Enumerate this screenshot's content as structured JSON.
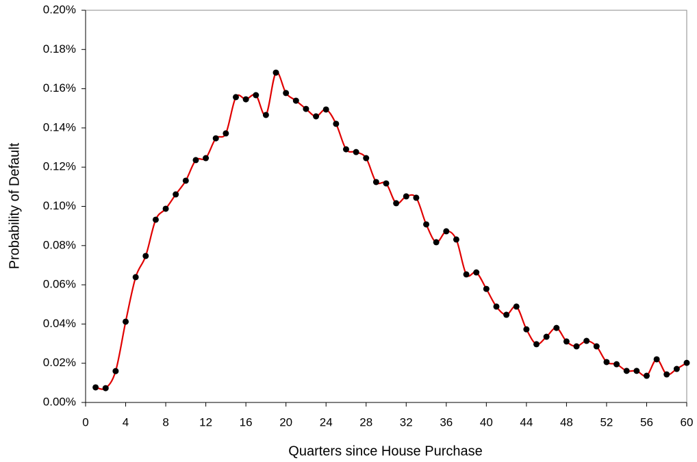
{
  "chart_data": {
    "type": "line",
    "x_label": "Quarters since House Purchase",
    "y_label": "Probability of Default",
    "x": [
      1,
      2,
      3,
      4,
      5,
      6,
      7,
      8,
      9,
      10,
      11,
      12,
      13,
      14,
      15,
      16,
      17,
      18,
      19,
      20,
      21,
      22,
      23,
      24,
      25,
      26,
      27,
      28,
      29,
      30,
      31,
      32,
      33,
      34,
      35,
      36,
      37,
      38,
      39,
      40,
      41,
      42,
      43,
      44,
      45,
      46,
      47,
      48,
      49,
      50,
      51,
      52,
      53,
      54,
      55,
      56,
      57,
      58,
      59,
      60
    ],
    "series": [
      {
        "color": "#e00000",
        "marker_color": "#000000",
        "values": [
          0.0077,
          0.0073,
          0.016,
          0.0412,
          0.0639,
          0.0747,
          0.0932,
          0.0988,
          0.1061,
          0.1131,
          0.1236,
          0.1246,
          0.1347,
          0.1372,
          0.1557,
          0.1546,
          0.1567,
          0.1466,
          0.1682,
          0.1578,
          0.1539,
          0.1497,
          0.1459,
          0.1494,
          0.1421,
          0.1291,
          0.1277,
          0.1246,
          0.1124,
          0.1117,
          0.1016,
          0.1051,
          0.1044,
          0.0908,
          0.0817,
          0.0873,
          0.0831,
          0.0653,
          0.0663,
          0.0579,
          0.0489,
          0.0447,
          0.0489,
          0.0373,
          0.0297,
          0.0335,
          0.038,
          0.0311,
          0.0286,
          0.0314,
          0.0286,
          0.0206,
          0.0195,
          0.0161,
          0.0161,
          0.0136,
          0.022,
          0.0143,
          0.0171,
          0.0202
        ]
      }
    ],
    "xlim": [
      0,
      60
    ],
    "xticks": [
      0,
      4,
      8,
      12,
      16,
      20,
      24,
      28,
      32,
      36,
      40,
      44,
      48,
      52,
      56,
      60
    ],
    "ylim": [
      0,
      0.2
    ],
    "yticks": [
      {
        "value": 0,
        "label": "0.00%"
      },
      {
        "value": 0.02,
        "label": "0.02%"
      },
      {
        "value": 0.04,
        "label": "0.04%"
      },
      {
        "value": 0.06,
        "label": "0.06%"
      },
      {
        "value": 0.08,
        "label": "0.08%"
      },
      {
        "value": 0.1,
        "label": "0.10%"
      },
      {
        "value": 0.12,
        "label": "0.12%"
      },
      {
        "value": 0.14,
        "label": "0.14%"
      },
      {
        "value": 0.16,
        "label": "0.16%"
      },
      {
        "value": 0.18,
        "label": "0.18%"
      },
      {
        "value": 0.2,
        "label": "0.20%"
      }
    ],
    "grid": false
  }
}
